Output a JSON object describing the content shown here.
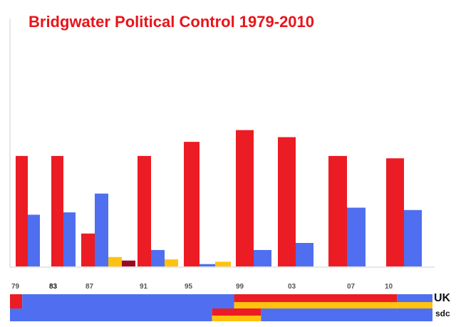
{
  "chart_data": {
    "type": "bar",
    "title": "Bridgwater Political Control 1979-2010",
    "grid": false,
    "legend": "none",
    "categories": [
      "79",
      "83",
      "87",
      "91",
      "95",
      "99",
      "03",
      "07",
      "10"
    ],
    "series": [
      {
        "color": "#ec1c24",
        "values": [
          47,
          47,
          14,
          47,
          53,
          58,
          55,
          47,
          46
        ]
      },
      {
        "color": "#4f6ff0",
        "values": [
          22,
          23,
          31,
          7,
          1,
          7,
          10,
          25,
          24
        ]
      },
      {
        "color": "#ffc20e",
        "values": [
          0,
          0,
          4,
          3,
          2,
          0,
          0,
          0,
          0
        ]
      },
      {
        "color": "#9b0a24",
        "values": [
          0,
          0,
          2.5,
          0,
          0,
          0,
          0,
          0,
          0
        ]
      }
    ],
    "ylim": [
      0,
      60
    ],
    "control_strips": [
      {
        "label": "UK",
        "segments": [
          {
            "from": 1979,
            "to": 1980,
            "color": "#ec1c24"
          },
          {
            "from": 1980,
            "to": 1997.3,
            "color": "#4f6ff0"
          },
          {
            "from": 1997.3,
            "to": 2010.6,
            "color": "#ec1c24",
            "lower": "#ffc20e"
          },
          {
            "from": 2010.6,
            "to": 2013.5,
            "color": "#4f6ff0",
            "lower": "#ffc20e"
          }
        ]
      },
      {
        "label": "sdc",
        "segments": [
          {
            "from": 1979,
            "to": 1995.5,
            "color": "#4f6ff0"
          },
          {
            "from": 1995.5,
            "to": 1999.5,
            "color": "#ec1c24",
            "lower": "#ffc20e"
          },
          {
            "from": 1999.5,
            "to": 2013.5,
            "color": "#4f6ff0"
          }
        ]
      }
    ]
  }
}
